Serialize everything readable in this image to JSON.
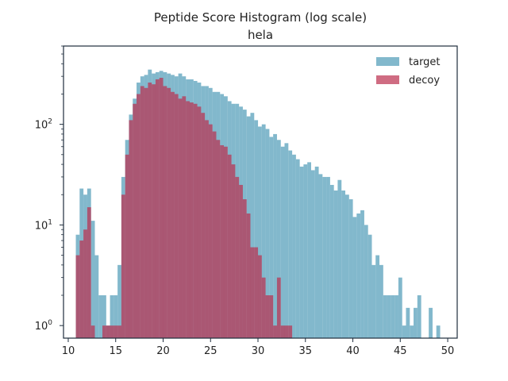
{
  "chart_data": {
    "type": "bar",
    "title": "Peptide Score Histogram (log scale)",
    "subtitle": "hela",
    "xlabel": "",
    "ylabel": "",
    "xlim": [
      9.5,
      51
    ],
    "ylim": [
      0.75,
      600
    ],
    "yscale": "log",
    "bin_width": 0.4,
    "x_ticks": [
      10,
      15,
      20,
      25,
      30,
      35,
      40,
      45,
      50
    ],
    "y_ticks": [
      1,
      10,
      100
    ],
    "y_tick_labels": [
      "10^0",
      "10^1",
      "10^2"
    ],
    "grid": false,
    "legend_position": "top-right",
    "series": [
      {
        "name": "target",
        "color": "#82b8cc",
        "bins": [
          [
            10.8,
            8
          ],
          [
            11.2,
            23
          ],
          [
            11.6,
            20
          ],
          [
            12.0,
            23
          ],
          [
            12.4,
            11
          ],
          [
            12.8,
            5
          ],
          [
            13.2,
            2
          ],
          [
            13.6,
            2
          ],
          [
            14.0,
            1
          ],
          [
            14.4,
            2
          ],
          [
            14.8,
            2
          ],
          [
            15.2,
            4
          ],
          [
            15.6,
            30
          ],
          [
            16.0,
            70
          ],
          [
            16.4,
            125
          ],
          [
            16.8,
            180
          ],
          [
            17.2,
            260
          ],
          [
            17.6,
            300
          ],
          [
            18.0,
            310
          ],
          [
            18.4,
            350
          ],
          [
            18.8,
            320
          ],
          [
            19.2,
            330
          ],
          [
            19.6,
            340
          ],
          [
            20.0,
            330
          ],
          [
            20.4,
            320
          ],
          [
            20.8,
            310
          ],
          [
            21.2,
            300
          ],
          [
            21.6,
            320
          ],
          [
            22.0,
            300
          ],
          [
            22.4,
            280
          ],
          [
            22.8,
            280
          ],
          [
            23.2,
            270
          ],
          [
            23.6,
            260
          ],
          [
            24.0,
            240
          ],
          [
            24.4,
            240
          ],
          [
            24.8,
            230
          ],
          [
            25.2,
            210
          ],
          [
            25.6,
            210
          ],
          [
            26.0,
            200
          ],
          [
            26.4,
            190
          ],
          [
            26.8,
            170
          ],
          [
            27.2,
            160
          ],
          [
            27.6,
            160
          ],
          [
            28.0,
            150
          ],
          [
            28.4,
            140
          ],
          [
            28.8,
            120
          ],
          [
            29.2,
            130
          ],
          [
            29.6,
            110
          ],
          [
            30.0,
            95
          ],
          [
            30.4,
            100
          ],
          [
            30.8,
            90
          ],
          [
            31.2,
            75
          ],
          [
            31.6,
            80
          ],
          [
            32.0,
            70
          ],
          [
            32.4,
            60
          ],
          [
            32.8,
            65
          ],
          [
            33.2,
            55
          ],
          [
            33.6,
            50
          ],
          [
            34.0,
            45
          ],
          [
            34.4,
            38
          ],
          [
            34.8,
            40
          ],
          [
            35.2,
            42
          ],
          [
            35.6,
            35
          ],
          [
            36.0,
            38
          ],
          [
            36.4,
            32
          ],
          [
            36.8,
            30
          ],
          [
            37.2,
            30
          ],
          [
            37.6,
            25
          ],
          [
            38.0,
            22
          ],
          [
            38.4,
            28
          ],
          [
            38.8,
            22
          ],
          [
            39.2,
            20
          ],
          [
            39.6,
            18
          ],
          [
            40.0,
            12
          ],
          [
            40.4,
            13
          ],
          [
            40.8,
            14
          ],
          [
            41.2,
            10
          ],
          [
            41.6,
            8
          ],
          [
            42.0,
            4
          ],
          [
            42.4,
            5
          ],
          [
            42.8,
            4
          ],
          [
            43.2,
            2
          ],
          [
            43.6,
            2
          ],
          [
            44.0,
            2
          ],
          [
            44.4,
            2
          ],
          [
            44.8,
            3
          ],
          [
            45.2,
            1
          ],
          [
            45.6,
            1.5
          ],
          [
            46.0,
            1
          ],
          [
            46.4,
            1.5
          ],
          [
            46.8,
            2
          ],
          [
            48.0,
            1.5
          ],
          [
            48.8,
            1
          ]
        ]
      },
      {
        "name": "decoy",
        "color": "#ba2d4d",
        "bins": [
          [
            10.8,
            5
          ],
          [
            11.2,
            7
          ],
          [
            11.6,
            9
          ],
          [
            12.0,
            15
          ],
          [
            12.4,
            1
          ],
          [
            13.6,
            1
          ],
          [
            14.0,
            1
          ],
          [
            14.4,
            1
          ],
          [
            14.8,
            1
          ],
          [
            15.2,
            1
          ],
          [
            15.6,
            20
          ],
          [
            16.0,
            50
          ],
          [
            16.4,
            110
          ],
          [
            16.8,
            160
          ],
          [
            17.2,
            200
          ],
          [
            17.6,
            240
          ],
          [
            18.0,
            230
          ],
          [
            18.4,
            260
          ],
          [
            18.8,
            250
          ],
          [
            19.2,
            280
          ],
          [
            19.6,
            290
          ],
          [
            20.0,
            240
          ],
          [
            20.4,
            230
          ],
          [
            20.8,
            210
          ],
          [
            21.2,
            200
          ],
          [
            21.6,
            180
          ],
          [
            22.0,
            190
          ],
          [
            22.4,
            170
          ],
          [
            22.8,
            165
          ],
          [
            23.2,
            160
          ],
          [
            23.6,
            150
          ],
          [
            24.0,
            130
          ],
          [
            24.4,
            110
          ],
          [
            24.8,
            100
          ],
          [
            25.2,
            85
          ],
          [
            25.6,
            70
          ],
          [
            26.0,
            62
          ],
          [
            26.4,
            60
          ],
          [
            26.8,
            50
          ],
          [
            27.2,
            40
          ],
          [
            27.6,
            30
          ],
          [
            28.0,
            25
          ],
          [
            28.4,
            18
          ],
          [
            28.8,
            13
          ],
          [
            29.2,
            6
          ],
          [
            29.6,
            6
          ],
          [
            30.0,
            5
          ],
          [
            30.4,
            3
          ],
          [
            30.8,
            2
          ],
          [
            31.2,
            2
          ],
          [
            31.6,
            1
          ],
          [
            32.0,
            3
          ],
          [
            32.4,
            1
          ],
          [
            32.8,
            1
          ],
          [
            33.2,
            1
          ]
        ]
      }
    ]
  }
}
